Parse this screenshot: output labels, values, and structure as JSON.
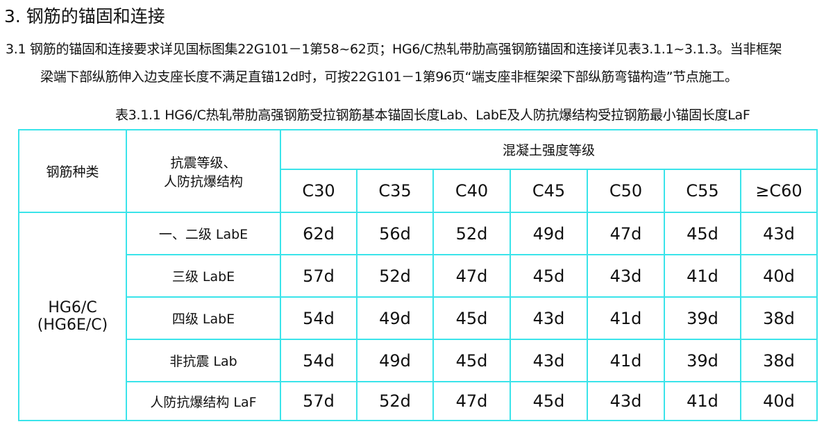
{
  "section_title": "3. 钢筋的锚固和连接",
  "paragraph_line1": "3.1 钢筋的锚固和连接要求详见国标图集22G101－1第58~62页；HG6/C热轧带肋高强钢筋锚固和连接详见表3.1.1~3.1.3。当非框架",
  "paragraph_line2": "梁端下部纵筋伸入边支座长度不满足直锚12d时，可按22G101－1第96页“端支座非框架梁下部纵筋弯锚构造”节点施工。",
  "table_caption": "表3.1.1  HG6/C热轧带肋高强钢筋受拉钢筋基本锚固长度Lab、LabE及人防抗爆结构受拉钢筋最小锚固长度LaF",
  "table": {
    "header_col1": "钢筋种类",
    "header_col2_line1": "抗震等级、",
    "header_col2_line2": "人防抗爆结构",
    "header_group": "混凝土强度等级",
    "grades": [
      "C30",
      "C35",
      "C40",
      "C45",
      "C50",
      "C55",
      "≥C60"
    ],
    "steel_type_line1": "HG6/C",
    "steel_type_line2": "(HG6E/C)",
    "rows": [
      {
        "label": "一、二级 LabE",
        "values": [
          "62d",
          "56d",
          "52d",
          "49d",
          "47d",
          "45d",
          "43d"
        ]
      },
      {
        "label": "三级 LabE",
        "values": [
          "57d",
          "52d",
          "47d",
          "45d",
          "43d",
          "41d",
          "40d"
        ]
      },
      {
        "label": "四级 LabE",
        "values": [
          "54d",
          "49d",
          "45d",
          "43d",
          "41d",
          "39d",
          "38d"
        ]
      },
      {
        "label": "非抗震 Lab",
        "values": [
          "54d",
          "49d",
          "45d",
          "43d",
          "41d",
          "39d",
          "38d"
        ]
      },
      {
        "label": "人防抗爆结构 LaF",
        "values": [
          "57d",
          "52d",
          "47d",
          "45d",
          "43d",
          "41d",
          "40d"
        ]
      }
    ]
  }
}
